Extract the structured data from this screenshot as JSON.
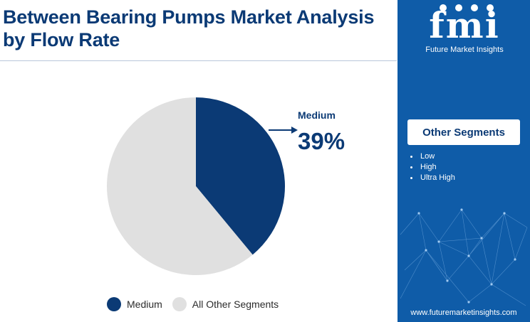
{
  "title": "Between Bearing Pumps Market Analysis by Flow Rate",
  "chart_data": {
    "type": "pie",
    "title": "Between Bearing Pumps Market Analysis by Flow Rate",
    "categories": [
      "Medium",
      "All Other Segments"
    ],
    "values": [
      39,
      61
    ],
    "colors": [
      "#0b3a75",
      "#e0e0e0"
    ],
    "callout": {
      "category": "Medium",
      "value_label": "39%"
    },
    "legend": {
      "position": "bottom",
      "entries": [
        "Medium",
        "All Other Segments"
      ]
    }
  },
  "sidebar": {
    "logo_text": "fmi",
    "logo_subtitle": "Future Market Insights",
    "segments_title": "Other Segments",
    "segments": [
      "Low",
      "High",
      "Ultra High"
    ],
    "website": "www.futuremarketinsights.com"
  }
}
